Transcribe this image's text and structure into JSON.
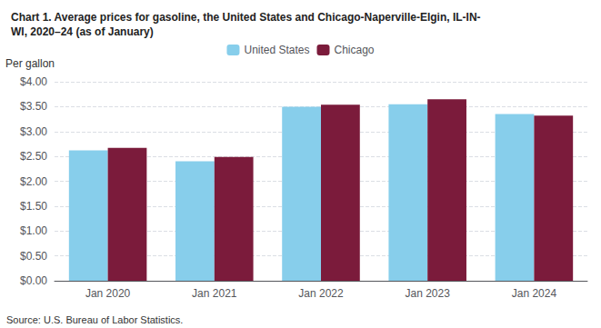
{
  "chart_data": {
    "type": "bar",
    "title": "Chart 1. Average prices for gasoline, the United States and Chicago-Naperville-Elgin, IL-IN-\nWI, 2020–24 (as of January)",
    "ylabel": "Per gallon",
    "source": "Source: U.S. Bureau of Labor Statistics.",
    "categories": [
      "Jan 2020",
      "Jan 2021",
      "Jan 2022",
      "Jan 2023",
      "Jan 2024"
    ],
    "series": [
      {
        "name": "United States",
        "color": "#87CEEB",
        "values": [
          2.62,
          2.4,
          3.5,
          3.55,
          3.35
        ]
      },
      {
        "name": "Chicago",
        "color": "#7B1B3B",
        "values": [
          2.67,
          2.49,
          3.54,
          3.65,
          3.32
        ]
      }
    ],
    "ylim": [
      0,
      4.0
    ],
    "yticks": [
      {
        "value": 0.0,
        "label": "$0.00"
      },
      {
        "value": 0.5,
        "label": "$0.50"
      },
      {
        "value": 1.0,
        "label": "$1.00"
      },
      {
        "value": 1.5,
        "label": "$1.50"
      },
      {
        "value": 2.0,
        "label": "$2.00"
      },
      {
        "value": 2.5,
        "label": "$2.50"
      },
      {
        "value": 3.0,
        "label": "$3.00"
      },
      {
        "value": 3.5,
        "label": "$3.50"
      },
      {
        "value": 4.0,
        "label": "$4.00"
      }
    ],
    "grid": true,
    "legend": "top"
  }
}
